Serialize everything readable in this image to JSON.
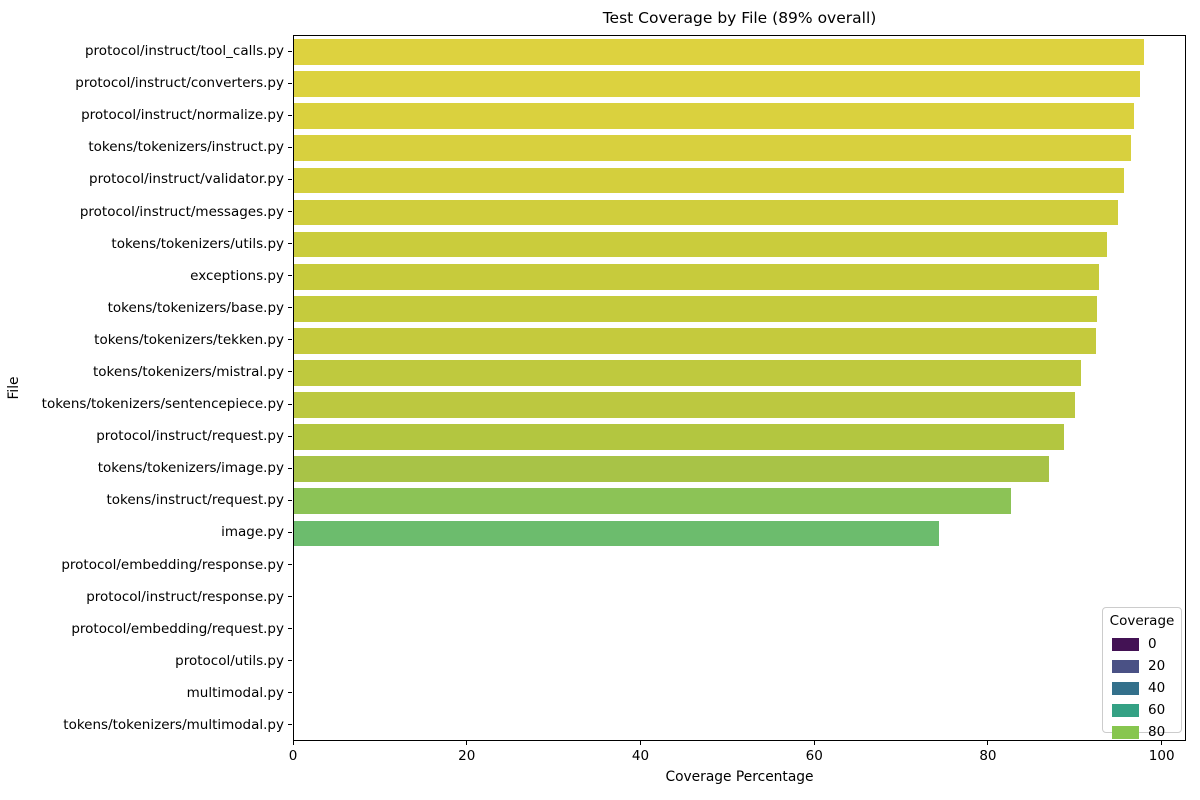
{
  "chart_data": {
    "type": "bar",
    "orientation": "horizontal",
    "title": "Test Coverage by File (89% overall)",
    "xlabel": "Coverage Percentage",
    "ylabel": "File",
    "xlim": [
      0,
      102.8
    ],
    "xticks": [
      "0",
      "20",
      "40",
      "60",
      "80",
      "100"
    ],
    "grid": false,
    "legend_position": "lower right",
    "categories": [
      "protocol/instruct/tool_calls.py",
      "protocol/instruct/converters.py",
      "protocol/instruct/normalize.py",
      "tokens/tokenizers/instruct.py",
      "protocol/instruct/validator.py",
      "protocol/instruct/messages.py",
      "tokens/tokenizers/utils.py",
      "exceptions.py",
      "tokens/tokenizers/base.py",
      "tokens/tokenizers/tekken.py",
      "tokens/tokenizers/mistral.py",
      "tokens/tokenizers/sentencepiece.py",
      "protocol/instruct/request.py",
      "tokens/tokenizers/image.py",
      "tokens/instruct/request.py",
      "image.py",
      "protocol/embedding/response.py",
      "protocol/instruct/response.py",
      "protocol/embedding/request.py",
      "protocol/utils.py",
      "multimodal.py",
      "tokens/tokenizers/multimodal.py"
    ],
    "values": [
      97.9,
      97.4,
      96.7,
      96.4,
      95.5,
      94.8,
      93.6,
      92.7,
      92.4,
      92.3,
      90.6,
      89.9,
      88.6,
      86.9,
      82.5,
      74.2,
      0,
      0,
      0,
      0,
      0,
      0
    ],
    "bar_colors": [
      "#ddd23f",
      "#dcd23f",
      "#dad13e",
      "#d8d03e",
      "#d4cf3d",
      "#d0ce3d",
      "#cacc3c",
      "#c7cb3c",
      "#c5cb3d",
      "#c5ca3d",
      "#bfc93e",
      "#bcc840",
      "#b3c640",
      "#a8c347",
      "#8cc356",
      "#6cbc6d",
      null,
      null,
      null,
      null,
      null,
      null
    ],
    "legend": {
      "title": "Coverage",
      "entries": [
        {
          "label": "0",
          "color": "#431254"
        },
        {
          "label": "20",
          "color": "#4a5185"
        },
        {
          "label": "40",
          "color": "#33708b"
        },
        {
          "label": "60",
          "color": "#34a184"
        },
        {
          "label": "80",
          "color": "#87c64f"
        }
      ]
    }
  }
}
